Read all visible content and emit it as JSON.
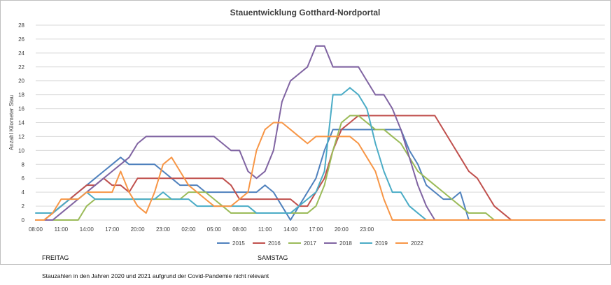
{
  "chart_data": {
    "type": "line",
    "title": "Stauentwicklung Gotthard-Nordportal",
    "ylabel": "Anzahl Kilometer Stau",
    "xlabel": "",
    "ylim": [
      0,
      28
    ],
    "yticks": [
      0,
      2,
      4,
      6,
      8,
      10,
      12,
      14,
      16,
      18,
      20,
      22,
      24,
      26,
      28
    ],
    "x_tick_labels": [
      "08:00",
      "11:00",
      "14:00",
      "17:00",
      "20:00",
      "23:00",
      "02:00",
      "05:00",
      "08:00",
      "11:00",
      "14:00",
      "17:00",
      "20:00",
      "23:00"
    ],
    "x_unit": "hours since Friday 08:00, one point per hour",
    "grid": "horizontal",
    "legend_position": "bottom",
    "series": [
      {
        "name": "2015",
        "color": "#4f81bd",
        "values": [
          0,
          0,
          1,
          2,
          3,
          4,
          5,
          6,
          7,
          8,
          9,
          8,
          8,
          8,
          8,
          7,
          6,
          5,
          5,
          5,
          4,
          4,
          4,
          4,
          4,
          4,
          4,
          5,
          4,
          2,
          0,
          2,
          4,
          6,
          10,
          13,
          13,
          13,
          13,
          13,
          13,
          13,
          13,
          13,
          10,
          8,
          5,
          4,
          3,
          3,
          4,
          0,
          0,
          0,
          0,
          0,
          0,
          0,
          0,
          0,
          0,
          0,
          0,
          0,
          0,
          0,
          0,
          0
        ]
      },
      {
        "name": "2016",
        "color": "#c0504d",
        "values": [
          0,
          0,
          1,
          2,
          3,
          4,
          5,
          5,
          6,
          5,
          5,
          4,
          6,
          6,
          6,
          6,
          6,
          6,
          6,
          6,
          6,
          6,
          6,
          5,
          3,
          3,
          3,
          3,
          3,
          3,
          3,
          2,
          2,
          4,
          6,
          10,
          13,
          14,
          15,
          15,
          15,
          15,
          15,
          15,
          15,
          15,
          15,
          15,
          13,
          11,
          9,
          7,
          6,
          4,
          2,
          1,
          0,
          0,
          0,
          0,
          0,
          0,
          0,
          0,
          0,
          0,
          0,
          0
        ]
      },
      {
        "name": "2017",
        "color": "#9bbb59",
        "values": [
          0,
          0,
          0,
          0,
          0,
          0,
          2,
          3,
          3,
          3,
          3,
          3,
          3,
          3,
          3,
          3,
          3,
          3,
          4,
          4,
          4,
          3,
          2,
          1,
          1,
          1,
          1,
          1,
          1,
          1,
          1,
          1,
          1,
          2,
          5,
          10,
          14,
          15,
          15,
          14,
          13,
          13,
          12,
          11,
          9,
          7,
          6,
          5,
          4,
          3,
          2,
          1,
          1,
          1,
          0,
          0,
          0,
          0,
          0,
          0,
          0,
          0,
          0,
          0,
          0,
          0,
          0,
          0
        ]
      },
      {
        "name": "2018",
        "color": "#8064a2",
        "values": [
          0,
          0,
          0,
          1,
          2,
          3,
          4,
          5,
          6,
          7,
          8,
          9,
          11,
          12,
          12,
          12,
          12,
          12,
          12,
          12,
          12,
          12,
          11,
          10,
          10,
          7,
          6,
          7,
          10,
          17,
          20,
          21,
          22,
          25,
          25,
          22,
          22,
          22,
          22,
          20,
          18,
          18,
          16,
          13,
          9,
          5,
          2,
          0,
          0,
          0,
          0,
          0,
          0,
          0,
          0,
          0,
          0,
          0,
          0,
          0,
          0,
          0,
          0,
          0,
          0,
          0,
          0,
          0
        ]
      },
      {
        "name": "2019",
        "color": "#4bacc6",
        "values": [
          1,
          1,
          1,
          2,
          3,
          3,
          4,
          3,
          3,
          3,
          3,
          3,
          3,
          3,
          3,
          4,
          3,
          3,
          3,
          2,
          2,
          2,
          2,
          2,
          2,
          2,
          1,
          1,
          1,
          1,
          1,
          2,
          3,
          4,
          7,
          18,
          18,
          19,
          18,
          16,
          11,
          7,
          4,
          4,
          2,
          1,
          0,
          0,
          0,
          0,
          0,
          0,
          0,
          0,
          0,
          0,
          0,
          0,
          0,
          0,
          0,
          0,
          0,
          0,
          0,
          0,
          0,
          0
        ]
      },
      {
        "name": "2022",
        "color": "#f79646",
        "values": [
          0,
          0,
          1,
          3,
          3,
          3,
          4,
          4,
          4,
          4,
          7,
          4,
          2,
          1,
          4,
          8,
          9,
          7,
          5,
          4,
          3,
          2,
          2,
          2,
          3,
          4,
          10,
          13,
          14,
          14,
          13,
          12,
          11,
          12,
          12,
          12,
          12,
          12,
          11,
          9,
          7,
          3,
          0,
          0,
          0,
          0,
          0,
          0,
          0,
          0,
          0,
          0,
          0,
          0,
          0,
          0,
          0,
          0,
          0,
          0,
          0,
          0,
          0,
          0,
          0,
          0,
          0,
          0
        ]
      }
    ]
  },
  "labels": {
    "day_friday": "FREITAG",
    "day_saturday": "SAMSTAG",
    "note": "Stauzahlen in den Jahren 2020 und 2021 aufgrund der Covid-Pandemie nicht relevant"
  }
}
